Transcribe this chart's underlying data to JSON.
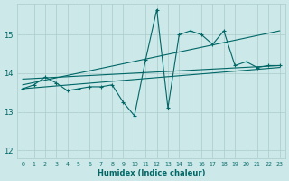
{
  "xlabel": "Humidex (Indice chaleur)",
  "bg_color": "#cce8e8",
  "grid_color": "#aacccc",
  "line_color": "#006666",
  "xlim": [
    -0.5,
    23.5
  ],
  "ylim": [
    11.8,
    15.8
  ],
  "yticks": [
    12,
    13,
    14,
    15
  ],
  "xticks": [
    0,
    1,
    2,
    3,
    4,
    5,
    6,
    7,
    8,
    9,
    10,
    11,
    12,
    13,
    14,
    15,
    16,
    17,
    18,
    19,
    20,
    21,
    22,
    23
  ],
  "series_zigzag": {
    "x": [
      0,
      1,
      2,
      3,
      4,
      5,
      6,
      7,
      8,
      9,
      10,
      11,
      12,
      13,
      14,
      15,
      16,
      17,
      18,
      19,
      20,
      21,
      22,
      23
    ],
    "y": [
      13.6,
      13.7,
      13.9,
      13.75,
      13.55,
      13.6,
      13.65,
      13.65,
      13.7,
      13.25,
      12.9,
      14.35,
      15.65,
      13.1,
      15.0,
      15.1,
      15.0,
      14.75,
      15.1,
      14.2,
      14.3,
      14.15,
      14.2,
      14.2
    ]
  },
  "series_upper_trend": {
    "x": [
      0,
      23
    ],
    "y": [
      13.7,
      15.1
    ]
  },
  "series_mid_trend": {
    "x": [
      0,
      23
    ],
    "y": [
      13.85,
      14.2
    ]
  },
  "series_lower_trend": {
    "x": [
      0,
      23
    ],
    "y": [
      13.6,
      14.15
    ]
  }
}
